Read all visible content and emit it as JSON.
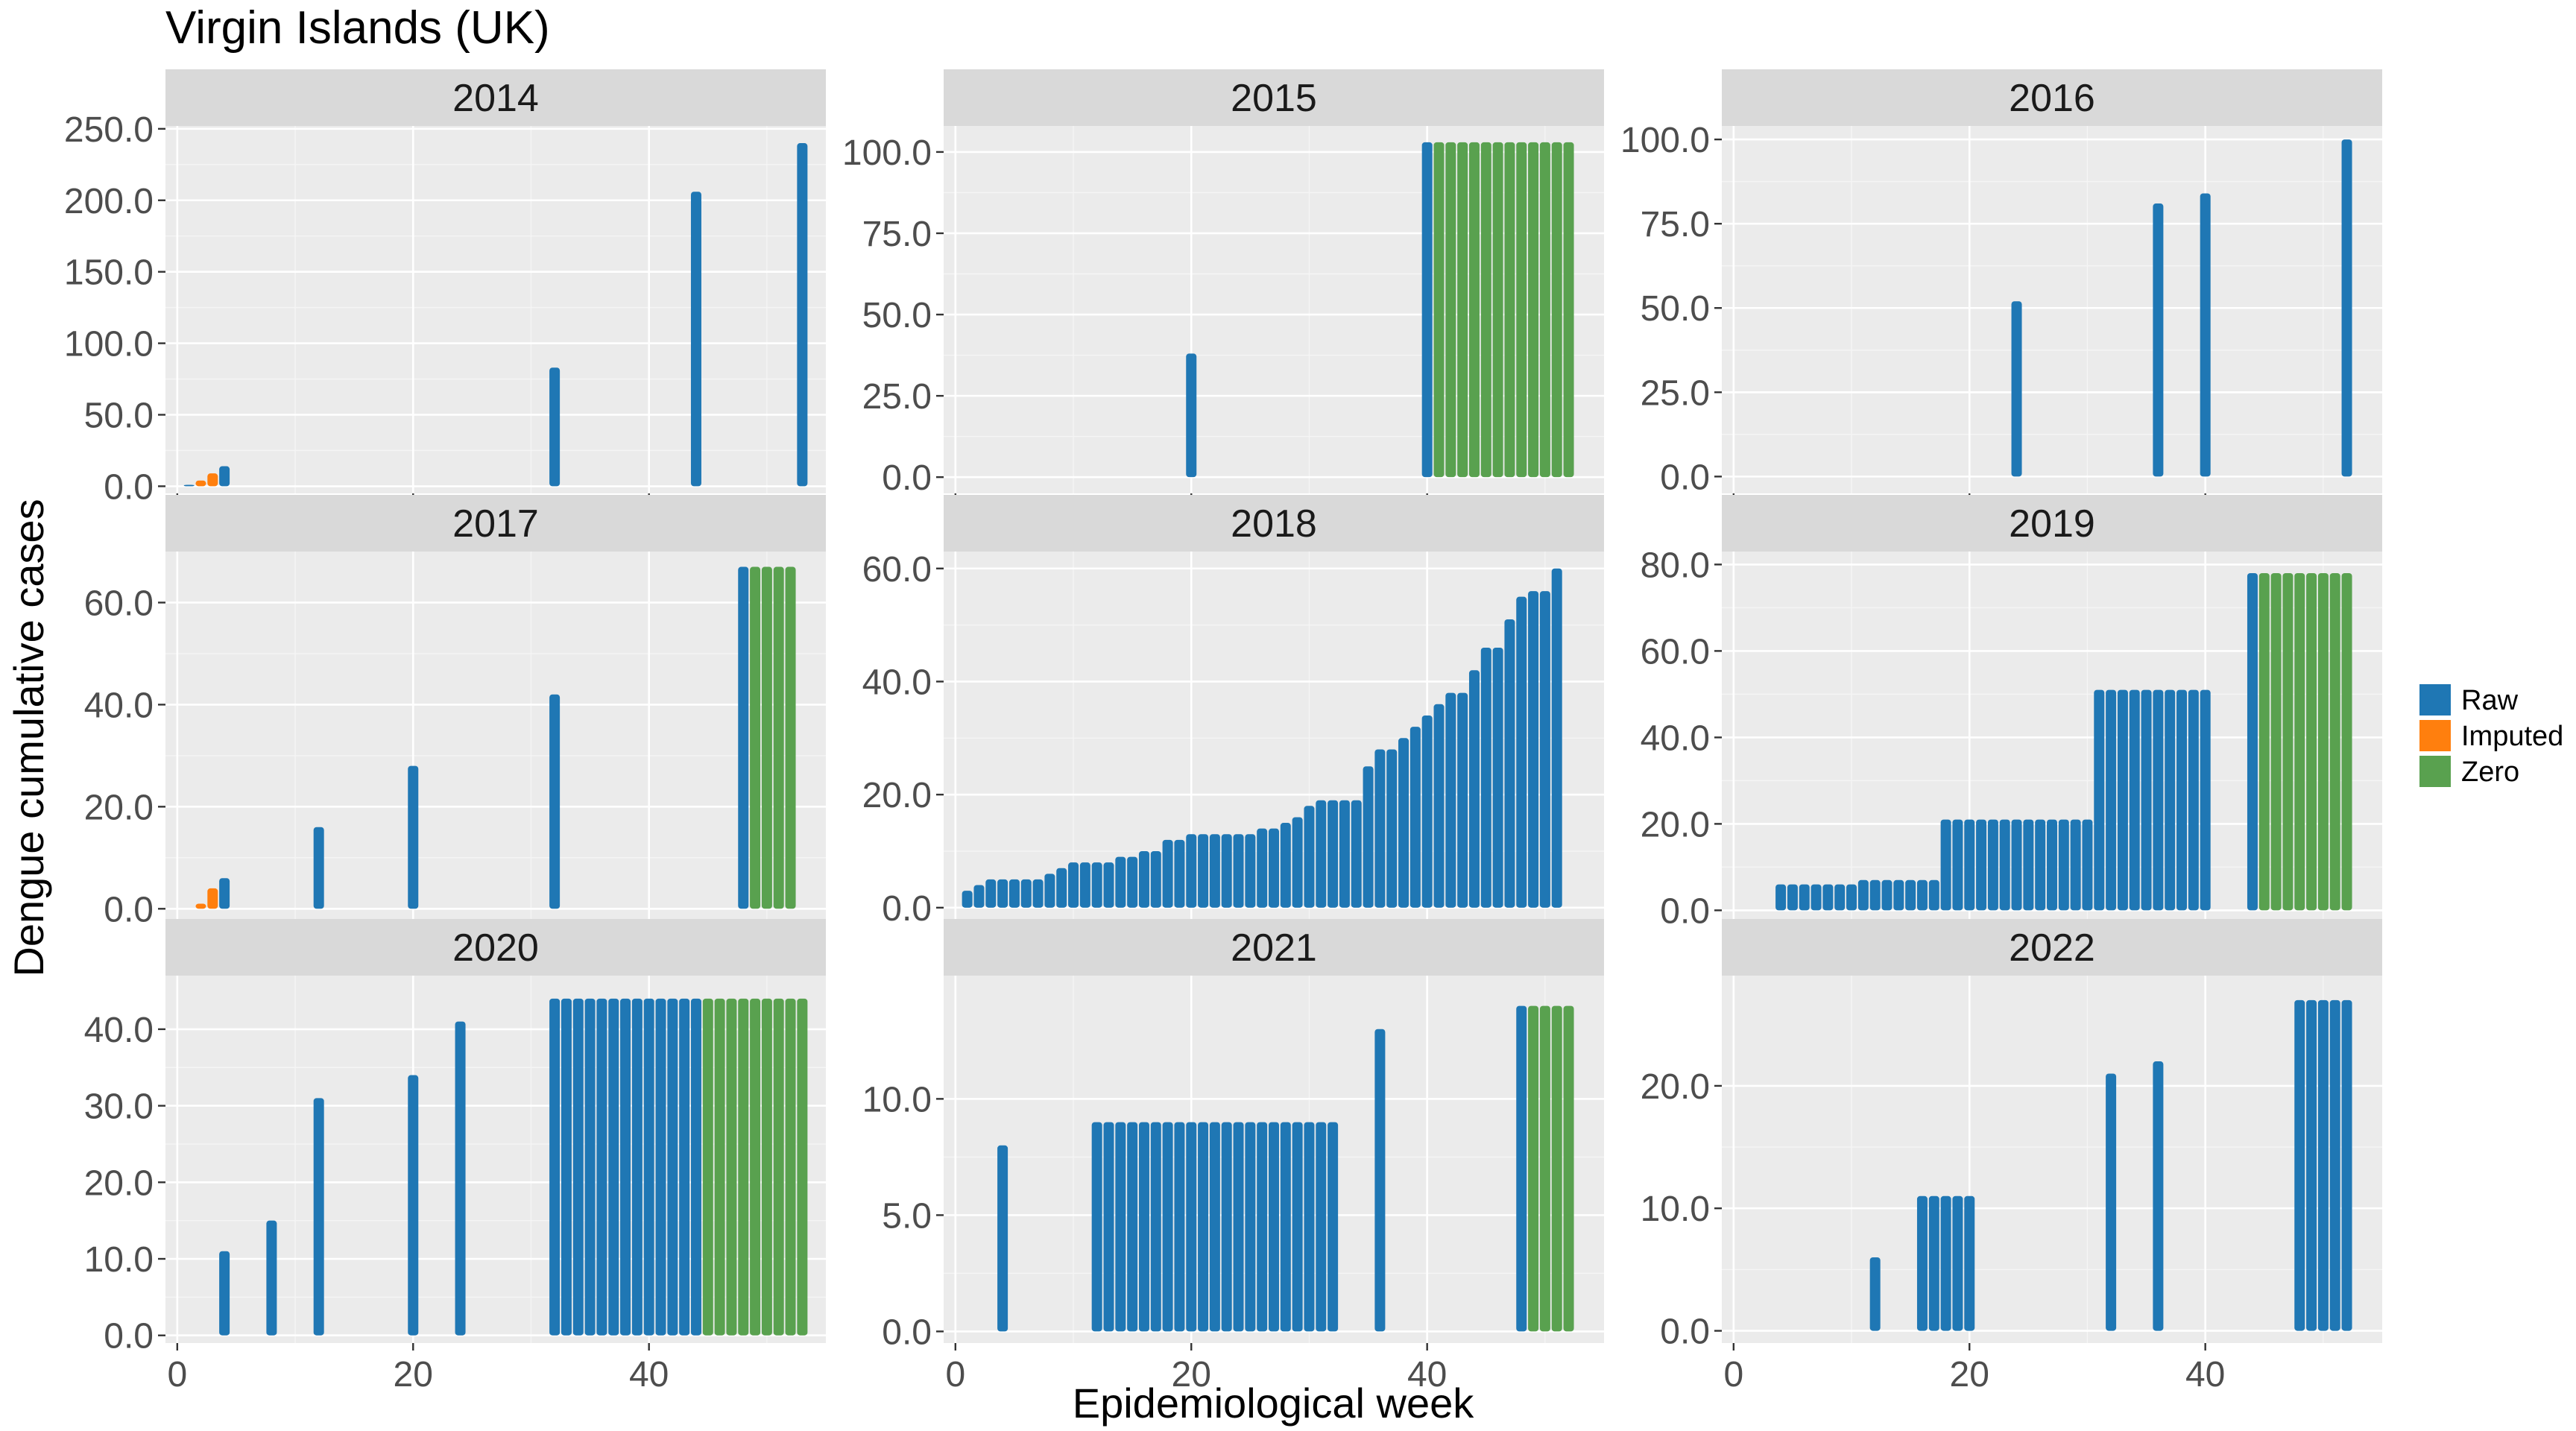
{
  "chart_data": {
    "type": "bar",
    "title": "Virgin Islands (UK)",
    "xlabel": "Epidemiological week",
    "ylabel": "Dengue cumulative cases",
    "x_ticks": [
      0,
      20,
      40
    ],
    "xlim": [
      -1,
      55
    ],
    "legend": {
      "placement": "right",
      "entries": [
        {
          "name": "Raw",
          "color": "#1f77b4"
        },
        {
          "name": "Imputed",
          "color": "#ff7f0e"
        },
        {
          "name": "Zero",
          "color": "#59a14f"
        }
      ]
    },
    "grid": true,
    "panels": [
      {
        "label": "2014",
        "ylim": [
          -5,
          252
        ],
        "y_ticks": [
          0,
          50,
          100,
          150,
          200,
          250
        ],
        "y_tick_labels": [
          "0.0",
          "50.0",
          "100.0",
          "150.0",
          "200.0",
          "250.0"
        ],
        "raw": [
          [
            1,
            1
          ],
          [
            4,
            14
          ],
          [
            32,
            83
          ],
          [
            44,
            206
          ],
          [
            53,
            240
          ]
        ],
        "imputed": [
          [
            2,
            4
          ],
          [
            3,
            9
          ]
        ],
        "zero": []
      },
      {
        "label": "2015",
        "ylim": [
          -5,
          108
        ],
        "y_ticks": [
          0,
          25,
          50,
          75,
          100
        ],
        "y_tick_labels": [
          "0.0",
          "25.0",
          "50.0",
          "75.0",
          "100.0"
        ],
        "raw": [
          [
            1,
            0
          ],
          [
            20,
            38
          ],
          [
            40,
            103
          ]
        ],
        "imputed": [],
        "zero": [
          [
            41,
            103
          ],
          [
            42,
            103
          ],
          [
            43,
            103
          ],
          [
            44,
            103
          ],
          [
            45,
            103
          ],
          [
            46,
            103
          ],
          [
            47,
            103
          ],
          [
            48,
            103
          ],
          [
            49,
            103
          ],
          [
            50,
            103
          ],
          [
            51,
            103
          ],
          [
            52,
            103
          ]
        ]
      },
      {
        "label": "2016",
        "ylim": [
          -5,
          104
        ],
        "y_ticks": [
          0,
          25,
          50,
          75,
          100
        ],
        "y_tick_labels": [
          "0.0",
          "25.0",
          "50.0",
          "75.0",
          "100.0"
        ],
        "raw": [
          [
            1,
            0
          ],
          [
            24,
            52
          ],
          [
            36,
            81
          ],
          [
            40,
            84
          ],
          [
            52,
            100
          ]
        ],
        "imputed": [],
        "zero": []
      },
      {
        "label": "2017",
        "ylim": [
          -2,
          70
        ],
        "y_ticks": [
          0,
          20,
          40,
          60
        ],
        "y_tick_labels": [
          "0.0",
          "20.0",
          "40.0",
          "60.0"
        ],
        "raw": [
          [
            1,
            0
          ],
          [
            4,
            6
          ],
          [
            12,
            16
          ],
          [
            20,
            28
          ],
          [
            32,
            42
          ],
          [
            48,
            67
          ]
        ],
        "imputed": [
          [
            2,
            1
          ],
          [
            3,
            4
          ]
        ],
        "zero": [
          [
            49,
            67
          ],
          [
            50,
            67
          ],
          [
            51,
            67
          ],
          [
            52,
            67
          ]
        ]
      },
      {
        "label": "2018",
        "ylim": [
          -2,
          63
        ],
        "y_ticks": [
          0,
          20,
          40,
          60
        ],
        "y_tick_labels": [
          "0.0",
          "20.0",
          "40.0",
          "60.0"
        ],
        "raw": [
          [
            1,
            3
          ],
          [
            2,
            4
          ],
          [
            3,
            5
          ],
          [
            4,
            5
          ],
          [
            5,
            5
          ],
          [
            6,
            5
          ],
          [
            7,
            5
          ],
          [
            8,
            6
          ],
          [
            9,
            7
          ],
          [
            10,
            8
          ],
          [
            11,
            8
          ],
          [
            12,
            8
          ],
          [
            13,
            8
          ],
          [
            14,
            9
          ],
          [
            15,
            9
          ],
          [
            16,
            10
          ],
          [
            17,
            10
          ],
          [
            18,
            12
          ],
          [
            19,
            12
          ],
          [
            20,
            13
          ],
          [
            21,
            13
          ],
          [
            22,
            13
          ],
          [
            23,
            13
          ],
          [
            24,
            13
          ],
          [
            25,
            13
          ],
          [
            26,
            14
          ],
          [
            27,
            14
          ],
          [
            28,
            15
          ],
          [
            29,
            16
          ],
          [
            30,
            18
          ],
          [
            31,
            19
          ],
          [
            32,
            19
          ],
          [
            33,
            19
          ],
          [
            34,
            19
          ],
          [
            35,
            25
          ],
          [
            36,
            28
          ],
          [
            37,
            28
          ],
          [
            38,
            30
          ],
          [
            39,
            32
          ],
          [
            40,
            34
          ],
          [
            41,
            36
          ],
          [
            42,
            38
          ],
          [
            43,
            38
          ],
          [
            44,
            42
          ],
          [
            45,
            46
          ],
          [
            46,
            46
          ],
          [
            47,
            51
          ],
          [
            48,
            55
          ],
          [
            49,
            56
          ],
          [
            50,
            56
          ],
          [
            51,
            60
          ]
        ],
        "imputed": [],
        "zero": []
      },
      {
        "label": "2019",
        "ylim": [
          -2,
          83
        ],
        "y_ticks": [
          0,
          20,
          40,
          60,
          80
        ],
        "y_tick_labels": [
          "0.0",
          "20.0",
          "40.0",
          "60.0",
          "80.0"
        ],
        "raw": [
          [
            4,
            6
          ],
          [
            5,
            6
          ],
          [
            6,
            6
          ],
          [
            7,
            6
          ],
          [
            8,
            6
          ],
          [
            9,
            6
          ],
          [
            10,
            6
          ],
          [
            11,
            7
          ],
          [
            12,
            7
          ],
          [
            13,
            7
          ],
          [
            14,
            7
          ],
          [
            15,
            7
          ],
          [
            16,
            7
          ],
          [
            17,
            7
          ],
          [
            18,
            21
          ],
          [
            19,
            21
          ],
          [
            20,
            21
          ],
          [
            21,
            21
          ],
          [
            22,
            21
          ],
          [
            23,
            21
          ],
          [
            24,
            21
          ],
          [
            25,
            21
          ],
          [
            26,
            21
          ],
          [
            27,
            21
          ],
          [
            28,
            21
          ],
          [
            29,
            21
          ],
          [
            30,
            21
          ],
          [
            31,
            51
          ],
          [
            32,
            51
          ],
          [
            33,
            51
          ],
          [
            34,
            51
          ],
          [
            35,
            51
          ],
          [
            36,
            51
          ],
          [
            37,
            51
          ],
          [
            38,
            51
          ],
          [
            39,
            51
          ],
          [
            40,
            51
          ],
          [
            44,
            78
          ]
        ],
        "imputed": [],
        "zero": [
          [
            45,
            78
          ],
          [
            46,
            78
          ],
          [
            47,
            78
          ],
          [
            48,
            78
          ],
          [
            49,
            78
          ],
          [
            50,
            78
          ],
          [
            51,
            78
          ],
          [
            52,
            78
          ]
        ]
      },
      {
        "label": "2020",
        "ylim": [
          -1,
          47
        ],
        "y_ticks": [
          0,
          10,
          20,
          30,
          40
        ],
        "y_tick_labels": [
          "0.0",
          "10.0",
          "20.0",
          "30.0",
          "40.0"
        ],
        "raw": [
          [
            4,
            11
          ],
          [
            8,
            15
          ],
          [
            12,
            31
          ],
          [
            20,
            34
          ],
          [
            24,
            41
          ],
          [
            32,
            44
          ],
          [
            33,
            44
          ],
          [
            34,
            44
          ],
          [
            35,
            44
          ],
          [
            36,
            44
          ],
          [
            37,
            44
          ],
          [
            38,
            44
          ],
          [
            39,
            44
          ],
          [
            40,
            44
          ],
          [
            41,
            44
          ],
          [
            42,
            44
          ],
          [
            43,
            44
          ],
          [
            44,
            44
          ]
        ],
        "imputed": [],
        "zero": [
          [
            45,
            44
          ],
          [
            46,
            44
          ],
          [
            47,
            44
          ],
          [
            48,
            44
          ],
          [
            49,
            44
          ],
          [
            50,
            44
          ],
          [
            51,
            44
          ],
          [
            52,
            44
          ],
          [
            53,
            44
          ]
        ]
      },
      {
        "label": "2021",
        "ylim": [
          -0.5,
          15.3
        ],
        "y_ticks": [
          0,
          5,
          10
        ],
        "y_tick_labels": [
          "0.0",
          "5.0",
          "10.0"
        ],
        "raw": [
          [
            4,
            8
          ],
          [
            12,
            9
          ],
          [
            13,
            9
          ],
          [
            14,
            9
          ],
          [
            15,
            9
          ],
          [
            16,
            9
          ],
          [
            17,
            9
          ],
          [
            18,
            9
          ],
          [
            19,
            9
          ],
          [
            20,
            9
          ],
          [
            21,
            9
          ],
          [
            22,
            9
          ],
          [
            23,
            9
          ],
          [
            24,
            9
          ],
          [
            25,
            9
          ],
          [
            26,
            9
          ],
          [
            27,
            9
          ],
          [
            28,
            9
          ],
          [
            29,
            9
          ],
          [
            30,
            9
          ],
          [
            31,
            9
          ],
          [
            32,
            9
          ],
          [
            36,
            13
          ],
          [
            48,
            14
          ]
        ],
        "imputed": [],
        "zero": [
          [
            49,
            14
          ],
          [
            50,
            14
          ],
          [
            51,
            14
          ],
          [
            52,
            14
          ]
        ]
      },
      {
        "label": "2022",
        "ylim": [
          -1,
          29
        ],
        "y_ticks": [
          0,
          10,
          20
        ],
        "y_tick_labels": [
          "0.0",
          "10.0",
          "20.0"
        ],
        "raw": [
          [
            12,
            6
          ],
          [
            16,
            11
          ],
          [
            17,
            11
          ],
          [
            18,
            11
          ],
          [
            19,
            11
          ],
          [
            20,
            11
          ],
          [
            32,
            21
          ],
          [
            36,
            22
          ],
          [
            48,
            27
          ],
          [
            49,
            27
          ],
          [
            50,
            27
          ],
          [
            51,
            27
          ],
          [
            52,
            27
          ]
        ],
        "imputed": [],
        "zero": []
      }
    ]
  }
}
